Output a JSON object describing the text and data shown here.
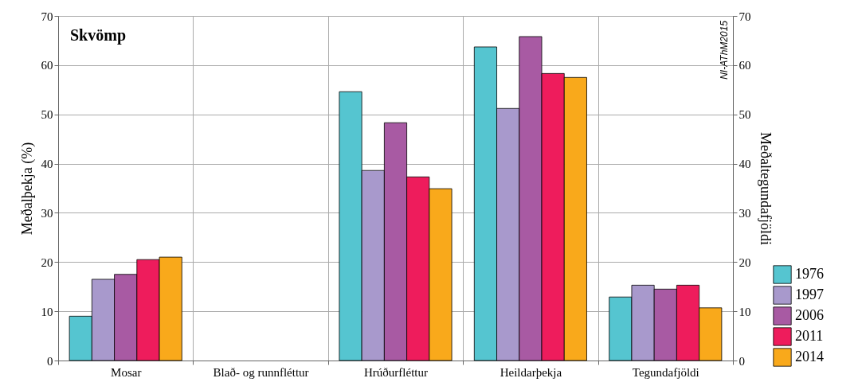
{
  "chart_data": {
    "type": "bar",
    "title": "Skvömp",
    "ylabel": "Meðalþekja (%)",
    "y2label": "Meðaltegundafjöldi",
    "categories": [
      "Mosar",
      "Blað- og runnfléttur",
      "Hrúðurfléttur",
      "Heildarþekja",
      "Tegundafjöldi"
    ],
    "series": [
      {
        "name": "1976",
        "color": "#55c5d0",
        "values": [
          9.0,
          null,
          54.6,
          63.7,
          12.9
        ]
      },
      {
        "name": "1997",
        "color": "#a899cc",
        "values": [
          16.5,
          null,
          38.6,
          51.2,
          15.3
        ]
      },
      {
        "name": "2006",
        "color": "#a85aa3",
        "values": [
          17.5,
          null,
          48.3,
          65.8,
          14.5
        ]
      },
      {
        "name": "2011",
        "color": "#ee1c5c",
        "values": [
          20.5,
          null,
          37.3,
          58.3,
          15.3
        ]
      },
      {
        "name": "2014",
        "color": "#f9a91b",
        "values": [
          21.0,
          null,
          34.9,
          57.5,
          10.7
        ]
      }
    ],
    "ylim": [
      0,
      70
    ],
    "yticks": [
      0,
      10,
      20,
      30,
      40,
      50,
      60,
      70
    ],
    "y2lim": [
      0,
      70
    ],
    "y2ticks": [
      0,
      10,
      20,
      30,
      40,
      50,
      60,
      70
    ],
    "grid": true,
    "legend": "bottom right",
    "annotations": [
      "NI-AThM2015"
    ]
  }
}
